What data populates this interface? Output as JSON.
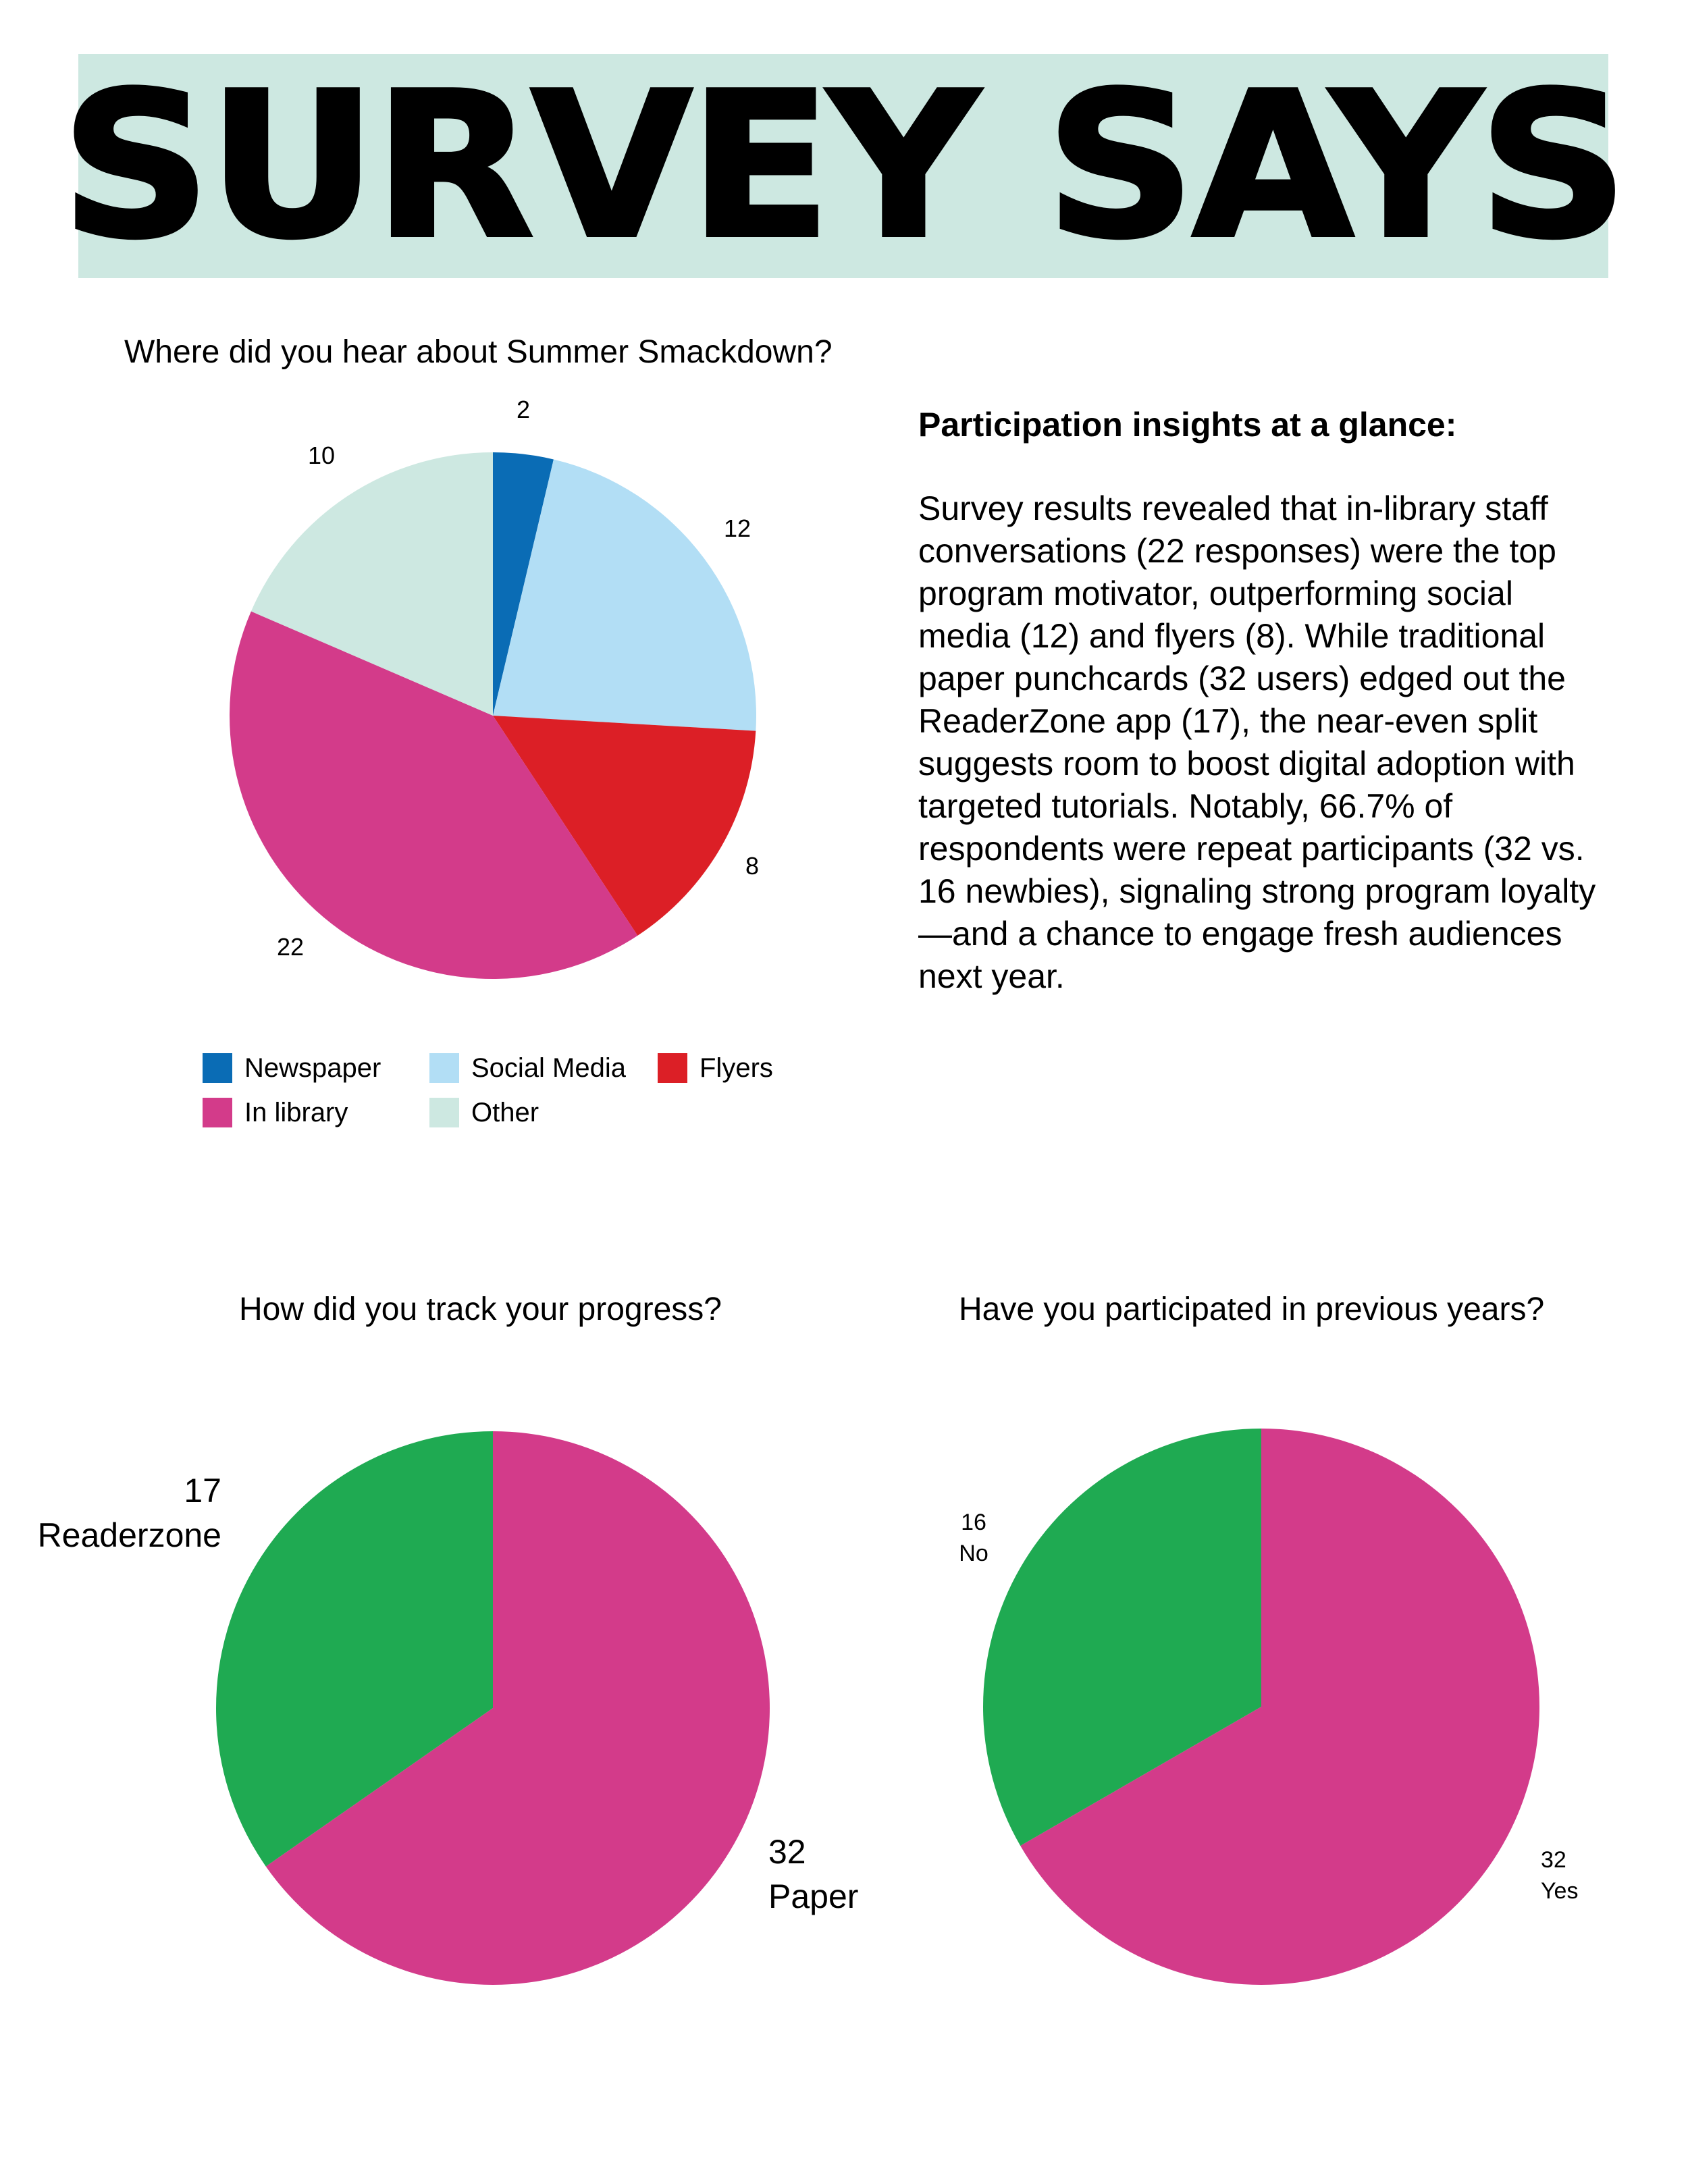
{
  "header": {
    "title": "SURVEY SAYS"
  },
  "insights": {
    "heading": "Participation insights at a glance:",
    "body": "Survey results revealed that in-library staff conversations (22 responses) were the top program motivator, outperforming social media (12) and flyers (8). While traditional paper punchcards (32 users) edged out the ReaderZone app (17), the near-even split suggests room to boost digital adoption with targeted tutorials. Notably, 66.7% of respondents were repeat participants (32 vs. 16 newbies), signaling strong program loyalty—and a chance to engage fresh audiences next year."
  },
  "chart_data": [
    {
      "type": "pie",
      "title": "Where did you hear about Summer Smackdown?",
      "categories": [
        "Newspaper",
        "Social Media",
        "Flyers",
        "In library",
        "Other"
      ],
      "values": [
        2,
        12,
        8,
        22,
        10
      ],
      "value_labels": [
        "2",
        "12",
        "8",
        "22",
        "10"
      ],
      "colors": [
        "#0a6cb5",
        "#b2def5",
        "#dc1f26",
        "#d33b8a",
        "#cde8e1"
      ],
      "legend": [
        "Newspaper",
        "Social Media",
        "Flyers",
        "In library",
        "Other"
      ],
      "legend_placement": "bottom"
    },
    {
      "type": "pie",
      "title": "How did you track your progress?",
      "categories": [
        "Paper",
        "Readerzone"
      ],
      "values": [
        32,
        17
      ],
      "value_labels": [
        "32",
        "17"
      ],
      "colors": [
        "#d33b8a",
        "#1faa52"
      ]
    },
    {
      "type": "pie",
      "title": "Have you participated in previous years?",
      "categories": [
        "Yes",
        "No"
      ],
      "values": [
        32,
        16
      ],
      "value_labels": [
        "32",
        "16"
      ],
      "colors": [
        "#d33b8a",
        "#1faa52"
      ]
    }
  ]
}
